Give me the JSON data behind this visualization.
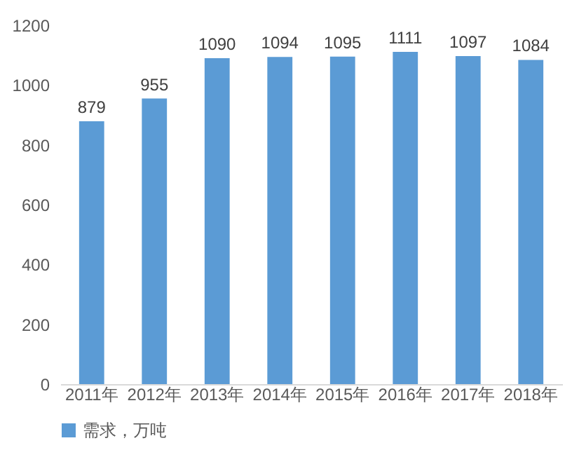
{
  "chart_data": {
    "type": "bar",
    "categories": [
      "2011年",
      "2012年",
      "2013年",
      "2014年",
      "2015年",
      "2016年",
      "2017年",
      "2018年"
    ],
    "series": [
      {
        "name": "需求，万吨",
        "color": "#5b9bd5",
        "values": [
          879,
          955,
          1090,
          1094,
          1095,
          1111,
          1097,
          1084
        ]
      }
    ],
    "ylim": [
      0,
      1200
    ],
    "yticks": [
      0,
      200,
      400,
      600,
      800,
      1000,
      1200
    ],
    "grid": false,
    "legend": "bottom",
    "data_labels": true
  }
}
